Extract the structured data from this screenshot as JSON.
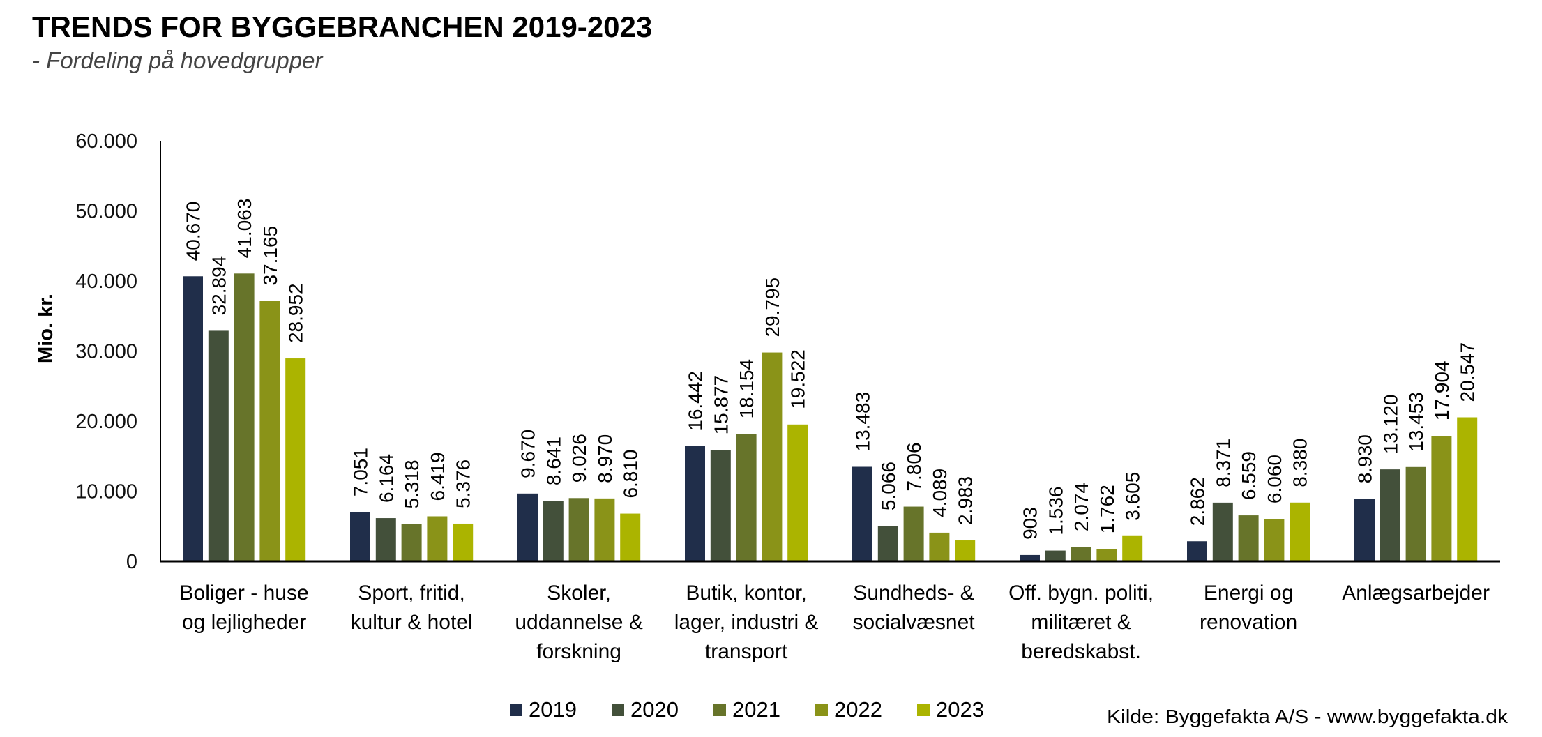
{
  "chart_data": {
    "type": "bar",
    "title": "TRENDS FOR BYGGEBRANCHEN 2019-2023",
    "subtitle": "- Fordeling på hovedgrupper",
    "xlabel": "",
    "ylabel": "Mio. kr.",
    "ylim": [
      0,
      60000
    ],
    "yticks": [
      0,
      10000,
      20000,
      30000,
      40000,
      50000,
      60000
    ],
    "ytick_labels": [
      "0",
      "10.000",
      "20.000",
      "30.000",
      "40.000",
      "50.000",
      "60.000"
    ],
    "grid": false,
    "legend_position": "bottom-center",
    "categories": [
      [
        "Boliger - huse",
        "og lejligheder"
      ],
      [
        "Sport, fritid,",
        "kultur & hotel"
      ],
      [
        "Skoler,",
        "uddannelse &",
        "forskning"
      ],
      [
        "Butik, kontor,",
        "lager, industri &",
        "transport"
      ],
      [
        "Sundheds- &",
        "socialvæsnet"
      ],
      [
        "Off. bygn. politi,",
        "militæret &",
        "beredskabst."
      ],
      [
        "Energi og",
        "renovation"
      ],
      [
        "Anlægsarbejder"
      ]
    ],
    "series": [
      {
        "name": "2019",
        "color": "#202e4a",
        "values": [
          40670,
          7051,
          9670,
          16442,
          13483,
          903,
          2862,
          8930
        ],
        "labels": [
          "40.670",
          "7.051",
          "9.670",
          "16.442",
          "13.483",
          "903",
          "2.862",
          "8.930"
        ]
      },
      {
        "name": "2020",
        "color": "#43503a",
        "values": [
          32894,
          6164,
          8641,
          15877,
          5066,
          1536,
          8371,
          13120
        ],
        "labels": [
          "32.894",
          "6.164",
          "8.641",
          "15.877",
          "5.066",
          "1.536",
          "8.371",
          "13.120"
        ]
      },
      {
        "name": "2021",
        "color": "#67742a",
        "values": [
          41063,
          5318,
          9026,
          18154,
          7806,
          2074,
          6559,
          13453
        ],
        "labels": [
          "41.063",
          "5.318",
          "9.026",
          "18.154",
          "7.806",
          "2.074",
          "6.559",
          "13.453"
        ]
      },
      {
        "name": "2022",
        "color": "#8a9318",
        "values": [
          37165,
          6419,
          8970,
          29795,
          4089,
          1762,
          6060,
          17904
        ],
        "labels": [
          "37.165",
          "6.419",
          "8.970",
          "29.795",
          "4.089",
          "1.762",
          "6.060",
          "17.904"
        ]
      },
      {
        "name": "2023",
        "color": "#abb400",
        "values": [
          28952,
          5376,
          6810,
          19522,
          2983,
          3605,
          8380,
          20547
        ],
        "labels": [
          "28.952",
          "5.376",
          "6.810",
          "19.522",
          "2.983",
          "3.605",
          "8.380",
          "20.547"
        ]
      }
    ],
    "source": "Kilde: Byggefakta A/S - www.byggefakta.dk"
  }
}
